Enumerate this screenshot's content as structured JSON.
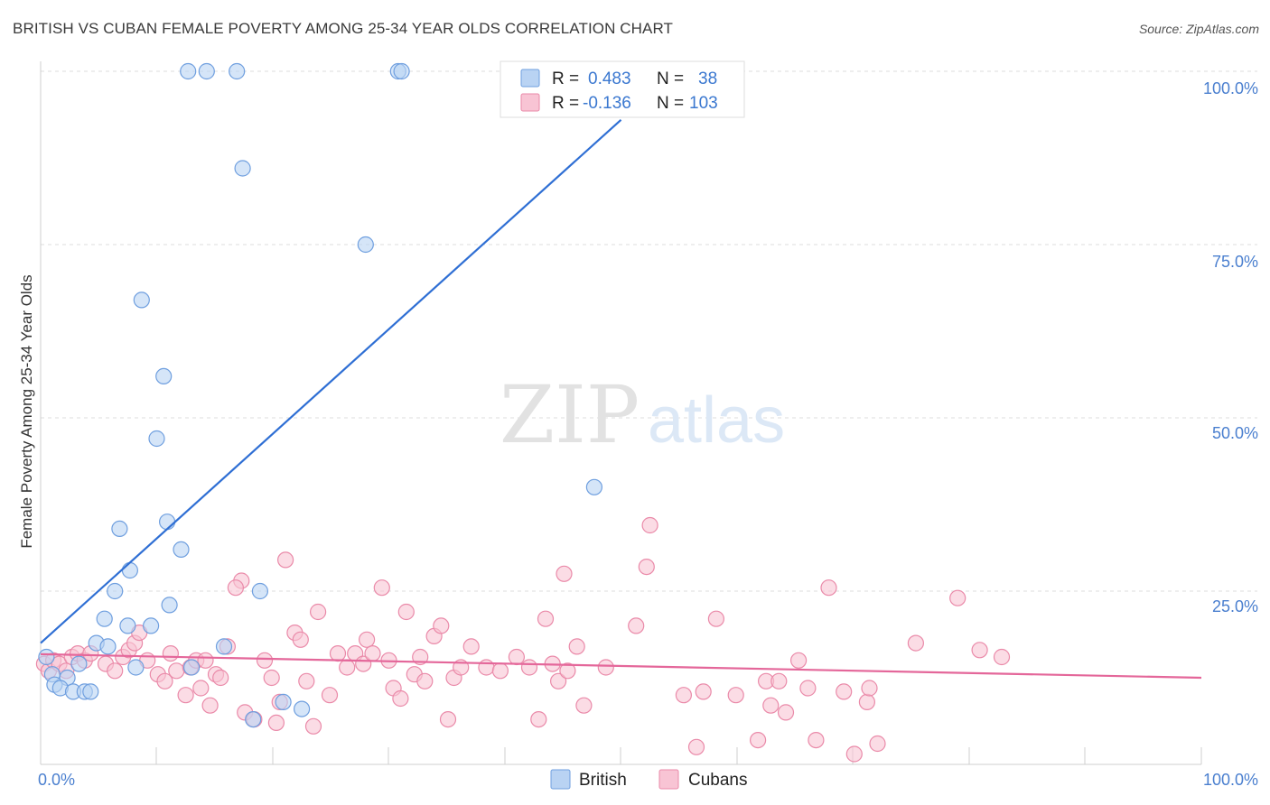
{
  "title": "BRITISH VS CUBAN FEMALE POVERTY AMONG 25-34 YEAR OLDS CORRELATION CHART",
  "source": "Source: ZipAtlas.com",
  "watermark": {
    "zip": "ZIP",
    "atlas": "atlas"
  },
  "legend": {
    "british": {
      "r_label": "R =",
      "r_value": "0.483",
      "n_label": "N =",
      "n_value": "38"
    },
    "cubans": {
      "r_label": "R =",
      "r_value": "-0.136",
      "n_label": "N =",
      "n_value": "103"
    }
  },
  "bottom_legend": [
    "British",
    "Cubans"
  ],
  "colors": {
    "british_fill": "#b9d3f3",
    "british_stroke": "#6f9fdf",
    "british_line": "#2f6fd4",
    "cubans_fill": "#f8c4d4",
    "cubans_stroke": "#ea8aa9",
    "cubans_line": "#e4679a",
    "tick_text": "#4a7fcf",
    "grid": "#dddddd"
  },
  "chart_data": {
    "type": "scatter",
    "title": "BRITISH VS CUBAN FEMALE POVERTY AMONG 25-34 YEAR OLDS CORRELATION CHART",
    "xlabel": "",
    "ylabel": "Female Poverty Among 25-34 Year Olds",
    "xlim": [
      0,
      100
    ],
    "ylim": [
      0,
      100
    ],
    "x_tick_labels": [
      "0.0%",
      "100.0%"
    ],
    "y_tick_labels": [
      "25.0%",
      "50.0%",
      "75.0%",
      "100.0%"
    ],
    "y_ticks": [
      25,
      50,
      75,
      100
    ],
    "grid": true,
    "legend_position": "top-center",
    "series": [
      {
        "name": "British",
        "r": 0.483,
        "n": 38,
        "trend": {
          "x": [
            0,
            50
          ],
          "y": [
            17.5,
            93
          ]
        },
        "points": [
          [
            12.7,
            100
          ],
          [
            14.3,
            100
          ],
          [
            16.9,
            100
          ],
          [
            30.8,
            100
          ],
          [
            31.1,
            100
          ],
          [
            17.4,
            86
          ],
          [
            28,
            75
          ],
          [
            8.7,
            67
          ],
          [
            10.6,
            56
          ],
          [
            10,
            47
          ],
          [
            47.7,
            40
          ],
          [
            6.8,
            34
          ],
          [
            10.9,
            35
          ],
          [
            12.1,
            31
          ],
          [
            7.7,
            28
          ],
          [
            6.4,
            25
          ],
          [
            18.9,
            25
          ],
          [
            11.1,
            23
          ],
          [
            5.5,
            21
          ],
          [
            7.5,
            20
          ],
          [
            9.5,
            20
          ],
          [
            4.8,
            17.5
          ],
          [
            5.8,
            17
          ],
          [
            15.8,
            17
          ],
          [
            8.2,
            14
          ],
          [
            13,
            14
          ],
          [
            3.3,
            14.5
          ],
          [
            0.5,
            15.5
          ],
          [
            1,
            13
          ],
          [
            2.3,
            12.5
          ],
          [
            1.2,
            11.5
          ],
          [
            1.7,
            11
          ],
          [
            2.8,
            10.5
          ],
          [
            3.8,
            10.5
          ],
          [
            4.3,
            10.5
          ],
          [
            20.9,
            9
          ],
          [
            22.5,
            8
          ],
          [
            18.3,
            6.5
          ]
        ]
      },
      {
        "name": "Cubans",
        "r": -0.136,
        "n": 103,
        "trend": {
          "x": [
            0,
            100
          ],
          "y": [
            15.9,
            12.5
          ]
        },
        "points": [
          [
            0.3,
            14.5
          ],
          [
            0.7,
            13.5
          ],
          [
            1.1,
            15
          ],
          [
            1.6,
            14.5
          ],
          [
            2.2,
            13.5
          ],
          [
            2.7,
            15.5
          ],
          [
            3.2,
            16
          ],
          [
            3.8,
            15
          ],
          [
            4.3,
            16
          ],
          [
            5.6,
            14.5
          ],
          [
            6.4,
            13.5
          ],
          [
            7.1,
            15.5
          ],
          [
            7.6,
            16.5
          ],
          [
            8.1,
            17.5
          ],
          [
            8.5,
            19
          ],
          [
            9.2,
            15
          ],
          [
            10.1,
            13
          ],
          [
            10.7,
            12
          ],
          [
            11.2,
            16
          ],
          [
            11.7,
            13.5
          ],
          [
            12.5,
            10
          ],
          [
            12.9,
            14
          ],
          [
            13.4,
            15
          ],
          [
            13.8,
            11
          ],
          [
            14.2,
            15
          ],
          [
            14.6,
            8.5
          ],
          [
            15.1,
            13
          ],
          [
            15.5,
            12.5
          ],
          [
            16.1,
            17
          ],
          [
            17.3,
            26.5
          ],
          [
            16.8,
            25.5
          ],
          [
            17.6,
            7.5
          ],
          [
            18.4,
            6.5
          ],
          [
            19.3,
            15
          ],
          [
            19.9,
            12.5
          ],
          [
            20.3,
            6
          ],
          [
            20.6,
            9
          ],
          [
            21.1,
            29.5
          ],
          [
            21.9,
            19
          ],
          [
            22.4,
            18
          ],
          [
            22.9,
            12
          ],
          [
            23.5,
            5.5
          ],
          [
            23.9,
            22
          ],
          [
            24.9,
            10
          ],
          [
            25.6,
            16
          ],
          [
            26.4,
            14
          ],
          [
            27.1,
            16
          ],
          [
            27.8,
            14.5
          ],
          [
            28.1,
            18
          ],
          [
            28.6,
            16
          ],
          [
            29.4,
            25.5
          ],
          [
            30,
            15
          ],
          [
            30.4,
            11
          ],
          [
            31,
            9.5
          ],
          [
            31.5,
            22
          ],
          [
            32.2,
            13
          ],
          [
            32.7,
            15.5
          ],
          [
            33.1,
            12
          ],
          [
            33.9,
            18.5
          ],
          [
            34.5,
            20
          ],
          [
            35.1,
            6.5
          ],
          [
            35.6,
            12.5
          ],
          [
            36.2,
            14
          ],
          [
            37.1,
            17
          ],
          [
            38.4,
            14
          ],
          [
            39.6,
            13.5
          ],
          [
            41,
            15.5
          ],
          [
            42.1,
            14
          ],
          [
            42.9,
            6.5
          ],
          [
            43.5,
            21
          ],
          [
            44.1,
            14.5
          ],
          [
            44.6,
            12
          ],
          [
            45.1,
            27.5
          ],
          [
            45.4,
            13.5
          ],
          [
            46.2,
            17
          ],
          [
            46.8,
            8.5
          ],
          [
            48.7,
            14
          ],
          [
            51.3,
            20
          ],
          [
            52.2,
            28.5
          ],
          [
            52.5,
            34.5
          ],
          [
            55.4,
            10
          ],
          [
            56.5,
            2.5
          ],
          [
            57.1,
            10.5
          ],
          [
            58.2,
            21
          ],
          [
            59.9,
            10
          ],
          [
            61.8,
            3.5
          ],
          [
            62.5,
            12
          ],
          [
            62.9,
            8.5
          ],
          [
            63.6,
            12
          ],
          [
            64.2,
            7.5
          ],
          [
            65.3,
            15
          ],
          [
            66.1,
            11
          ],
          [
            66.8,
            3.5
          ],
          [
            67.9,
            25.5
          ],
          [
            69.2,
            10.5
          ],
          [
            70.1,
            1.5
          ],
          [
            71.2,
            9
          ],
          [
            71.4,
            11
          ],
          [
            72.1,
            3
          ],
          [
            75.4,
            17.5
          ],
          [
            79,
            24
          ],
          [
            80.9,
            16.5
          ],
          [
            82.8,
            15.5
          ]
        ]
      }
    ]
  }
}
